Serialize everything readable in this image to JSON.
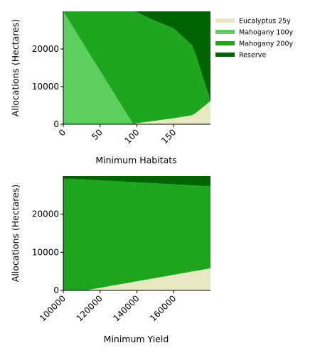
{
  "chart_data": [
    {
      "type": "area",
      "stacked": true,
      "xlabel": "Minimum Habitats",
      "ylabel": "Allocations (Hectares)",
      "xlim": [
        0,
        200
      ],
      "ylim": [
        0,
        30000
      ],
      "xticks": [
        "0",
        "50",
        "100",
        "150"
      ],
      "yticks": [
        "0",
        "10000",
        "20000"
      ],
      "x": [
        0,
        95,
        100,
        120,
        150,
        175,
        180,
        200
      ],
      "series": [
        {
          "name": "Eucalyptus 25y",
          "color": "#e6e9c2",
          "values": [
            0,
            0,
            300,
            800,
            1600,
            2400,
            3000,
            6200
          ]
        },
        {
          "name": "Mahogany 100y",
          "color": "#5ccf5c",
          "values": [
            30000,
            0,
            0,
            0,
            0,
            0,
            0,
            0
          ]
        },
        {
          "name": "Mahogany 200y",
          "color": "#1ea71e",
          "values": [
            0,
            30000,
            29500,
            27100,
            23900,
            18600,
            15500,
            0
          ]
        },
        {
          "name": "Reserve",
          "color": "#006400",
          "values": [
            0,
            0,
            200,
            2100,
            4500,
            9000,
            11500,
            23800
          ]
        }
      ],
      "legend": "outside-right-top"
    },
    {
      "type": "area",
      "stacked": true,
      "xlabel": "Minimum Yield",
      "ylabel": "Allocations (Hectares)",
      "xlim": [
        100000,
        180000
      ],
      "ylim": [
        0,
        30000
      ],
      "xticks": [
        "100000",
        "120000",
        "140000",
        "160000"
      ],
      "yticks": [
        "0",
        "10000",
        "20000"
      ],
      "x": [
        100000,
        112000,
        180000
      ],
      "series": [
        {
          "name": "Eucalyptus 25y",
          "color": "#e6e9c2",
          "values": [
            0,
            0,
            5800
          ]
        },
        {
          "name": "Mahogany 100y",
          "color": "#5ccf5c",
          "values": [
            0,
            0,
            0
          ]
        },
        {
          "name": "Mahogany 200y",
          "color": "#1ea71e",
          "values": [
            29300,
            29100,
            21500
          ]
        },
        {
          "name": "Reserve",
          "color": "#006400",
          "values": [
            700,
            900,
            2700
          ]
        }
      ]
    }
  ]
}
